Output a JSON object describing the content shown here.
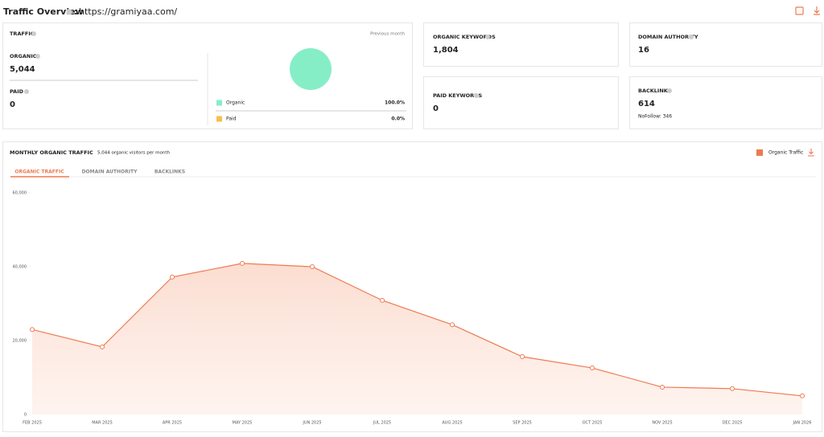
{
  "header": {
    "title": "Traffic Overview",
    "separator": ":",
    "url": "https://gramiyaa.com/"
  },
  "traffic": {
    "title": "TRAFFIC",
    "period": "Previous month",
    "organic_label": "ORGANIC",
    "organic_value": "5,044",
    "paid_label": "PAID",
    "paid_value": "0"
  },
  "cards": [
    {
      "title": "ORGANIC KEYWORDS",
      "value": "1,804"
    },
    {
      "title": "PAID KEYWORDS",
      "value": "0"
    },
    {
      "title": "DOMAIN AUTHORITY",
      "value": "16"
    },
    {
      "title": "BACKLINKS",
      "value": "614",
      "note": "NoFollow: 346"
    }
  ],
  "tabs": [
    "ORGANIC TRAFFIC",
    "DOMAIN AUTHORITY",
    "BACKLINKS"
  ],
  "chart_data": [
    {
      "type": "pie",
      "categories": [
        "Organic",
        "Paid"
      ],
      "values": [
        100,
        0
      ],
      "value_labels": [
        "100.0%",
        "0.0%"
      ],
      "colors": [
        "#86eec7",
        "#f5c04f"
      ]
    },
    {
      "type": "line",
      "title": "MONTHLY ORGANIC TRAFFIC",
      "subtitle": "5,044 organic visitors per month",
      "categories": [
        "FEB 2025",
        "MAR 2025",
        "APR 2025",
        "MAY 2025",
        "JUN 2025",
        "JUL 2025",
        "AUG 2025",
        "SEP 2025",
        "OCT 2025",
        "NOV 2025",
        "DEC 2025",
        "JAN 2026"
      ],
      "series": [
        {
          "name": "Organic Traffic",
          "color": "#ee7a50",
          "values": [
            23000,
            18300,
            37200,
            40900,
            40000,
            30900,
            24300,
            15650,
            12600,
            7400,
            7000,
            5044
          ]
        }
      ],
      "ylim": [
        0,
        60000
      ],
      "yticks": [
        0,
        {
          "value": 20000,
          "label": "20,000"
        },
        {
          "value": 40000,
          "label": "40,000"
        },
        {
          "value": 60000,
          "label": "60,000"
        }
      ]
    }
  ]
}
